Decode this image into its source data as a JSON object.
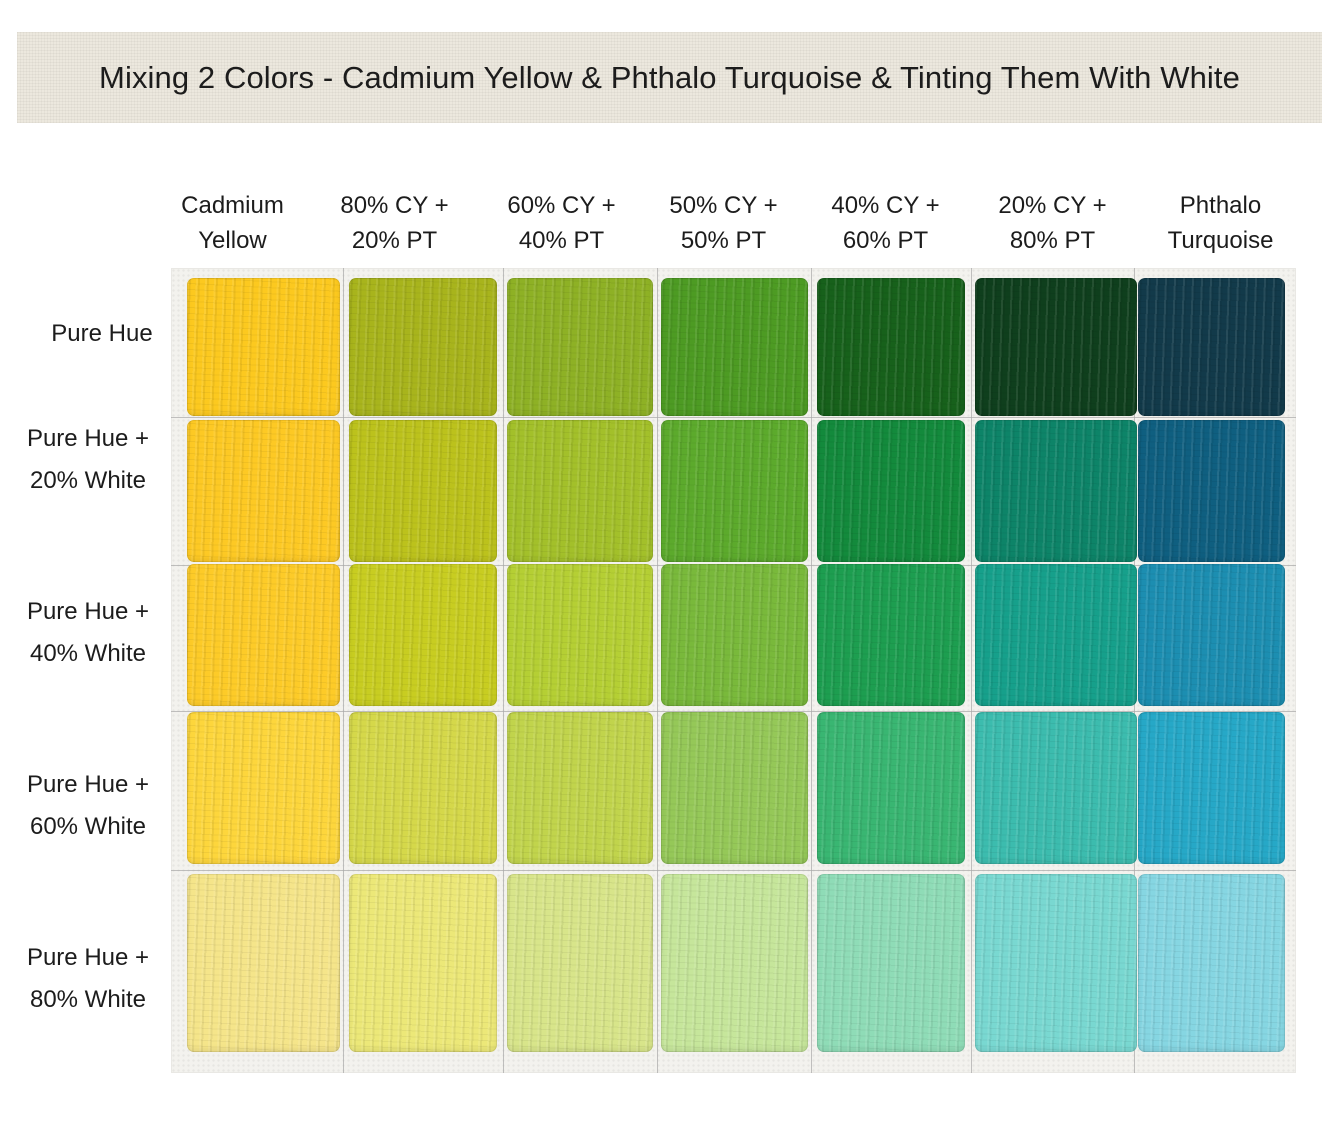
{
  "title": "Mixing 2 Colors - Cadmium Yellow & Phthalo Turquoise & Tinting Them With White",
  "columns": [
    {
      "line1": "Cadmium",
      "line2": "Yellow"
    },
    {
      "line1": "80% CY +",
      "line2": "20% PT"
    },
    {
      "line1": "60% CY +",
      "line2": "40% PT"
    },
    {
      "line1": "50% CY +",
      "line2": "50% PT"
    },
    {
      "line1": "40% CY +",
      "line2": "60% PT"
    },
    {
      "line1": "20% CY +",
      "line2": "80% PT"
    },
    {
      "line1": "Phthalo",
      "line2": "Turquoise"
    }
  ],
  "rows": [
    {
      "line1": "Pure Hue",
      "line2": ""
    },
    {
      "line1": "Pure Hue +",
      "line2": "20% White"
    },
    {
      "line1": "Pure Hue +",
      "line2": "40% White"
    },
    {
      "line1": "Pure Hue +",
      "line2": "60% White"
    },
    {
      "line1": "Pure Hue +",
      "line2": "80% White"
    }
  ],
  "swatch_colors": [
    [
      "#fcc91f",
      "#a8b41c",
      "#8eb125",
      "#4d9b23",
      "#17611b",
      "#0f3f1d",
      "#123a4a"
    ],
    [
      "#fdc924",
      "#bcc21c",
      "#a3c02a",
      "#5caa2c",
      "#138a3c",
      "#0d8468",
      "#0f5f80"
    ],
    [
      "#fdcb28",
      "#c8cd21",
      "#b5cf34",
      "#79b93b",
      "#1d9e50",
      "#16a08b",
      "#1c8eb1"
    ],
    [
      "#fdd63c",
      "#d5d84a",
      "#c1d44c",
      "#95c858",
      "#39b672",
      "#3cbcae",
      "#26a8c7"
    ],
    [
      "#f5e58a",
      "#ece878",
      "#d8e58a",
      "#c6e69b",
      "#8fdcb7",
      "#79d8d1",
      "#86d6e2"
    ]
  ]
}
